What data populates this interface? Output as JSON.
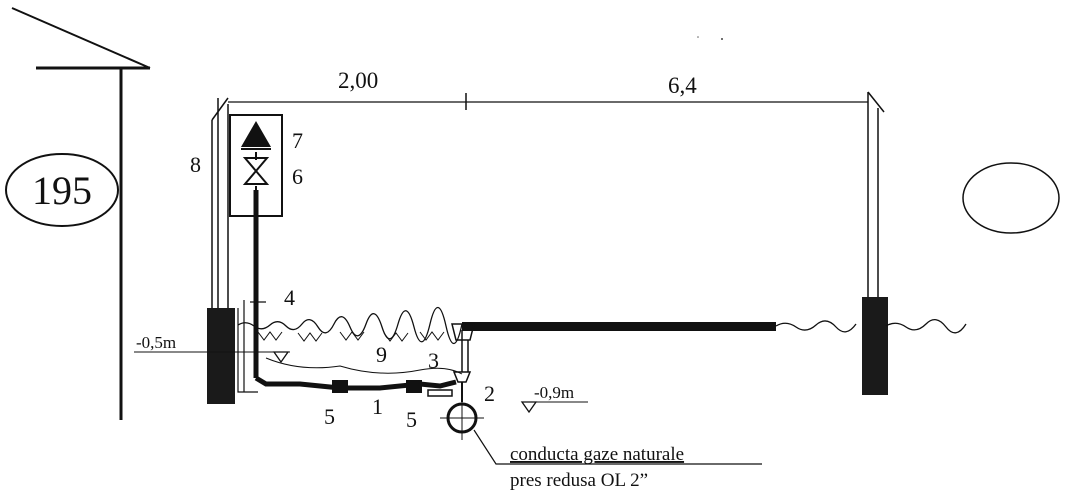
{
  "plot_number": "195",
  "dimensions": {
    "left": "2,00",
    "right": "6,4"
  },
  "levels": {
    "upper": "-0,5m",
    "lower": "-0,9m"
  },
  "callouts": {
    "n1": "1",
    "n2": "2",
    "n3": "3",
    "n4": "4",
    "n5a": "5",
    "n5b": "5",
    "n6": "6",
    "n7": "7",
    "n8": "8",
    "n9": "9"
  },
  "caption": {
    "line1": "conducta gaze naturale",
    "line2": "pres redusa OL 2”"
  },
  "colors": {
    "ink": "#111111",
    "background": "#ffffff"
  }
}
